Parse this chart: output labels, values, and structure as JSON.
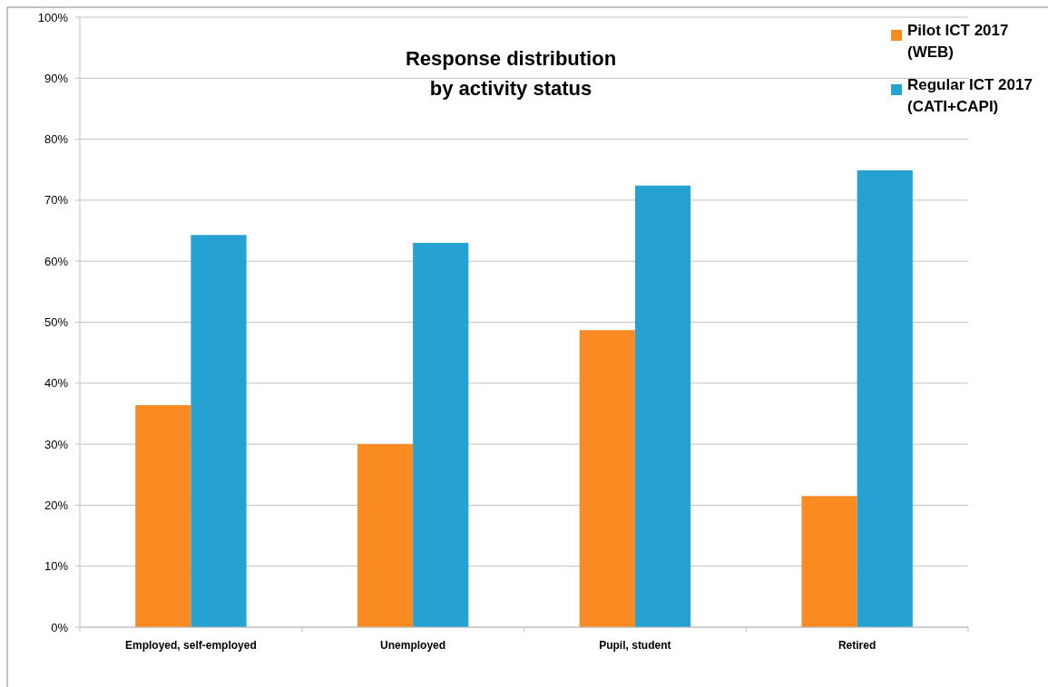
{
  "chart_data": {
    "type": "bar",
    "title": "Response distribution by activity status",
    "categories": [
      "Employed, self-employed",
      "Unemployed",
      "Pupil, student",
      "Retired"
    ],
    "series": [
      {
        "name": "Pilot ICT 2017 (WEB)",
        "color": "#f98b22",
        "values": [
          36.4,
          30.0,
          48.7,
          21.5
        ]
      },
      {
        "name": "Regular ICT 2017 (CATI+CAPI)",
        "color": "#25a2d2",
        "values": [
          64.3,
          63.0,
          72.4,
          74.9
        ]
      }
    ],
    "ylim": [
      0,
      100
    ],
    "yticks": [
      {
        "value": 0,
        "label": "0%"
      },
      {
        "value": 10,
        "label": "10%"
      },
      {
        "value": 20,
        "label": "20%"
      },
      {
        "value": 30,
        "label": "30%"
      },
      {
        "value": 40,
        "label": "40%"
      },
      {
        "value": 50,
        "label": "50%"
      },
      {
        "value": 60,
        "label": "60%"
      },
      {
        "value": 70,
        "label": "70%"
      },
      {
        "value": 80,
        "label": "80%"
      },
      {
        "value": 90,
        "label": "90%"
      },
      {
        "value": 100,
        "label": "100%"
      }
    ],
    "grid": "y",
    "legend": "top right"
  }
}
